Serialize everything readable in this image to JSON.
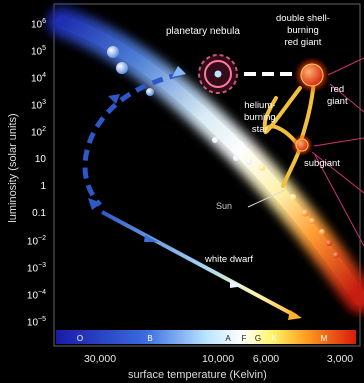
{
  "labels": {
    "planetary_nebula": "planetary nebula",
    "double_shell_line1": "double shell-",
    "double_shell_line2": "burning",
    "double_shell_line3": "red giant",
    "red_giant_line1": "red",
    "red_giant_line2": "giant",
    "helium_line1": "helium-",
    "helium_line2": "burning",
    "helium_line3": "star",
    "subgiant": "subgiant",
    "sun": "Sun",
    "white_dwarf": "white dwarf"
  },
  "y_axis": {
    "label": "luminosity (solar units)",
    "ticks": [
      {
        "text": "10",
        "exp": "6"
      },
      {
        "text": "10",
        "exp": "5"
      },
      {
        "text": "10",
        "exp": "4"
      },
      {
        "text": "10",
        "exp": "3"
      },
      {
        "text": "10",
        "exp": "2"
      },
      {
        "text": "10",
        "exp": ""
      },
      {
        "text": "1",
        "exp": ""
      },
      {
        "text": "0.1",
        "exp": ""
      },
      {
        "text": "10",
        "exp": "−2"
      },
      {
        "text": "10",
        "exp": "−3"
      },
      {
        "text": "10",
        "exp": "−4"
      },
      {
        "text": "10",
        "exp": "−5"
      }
    ]
  },
  "x_axis": {
    "label": "surface temperature (Kelvin)",
    "ticks": [
      "30,000",
      "10,000",
      "6,000",
      "3,000"
    ],
    "spectral_classes": [
      "O",
      "B",
      "A",
      "F",
      "G",
      "K",
      "M"
    ]
  }
}
